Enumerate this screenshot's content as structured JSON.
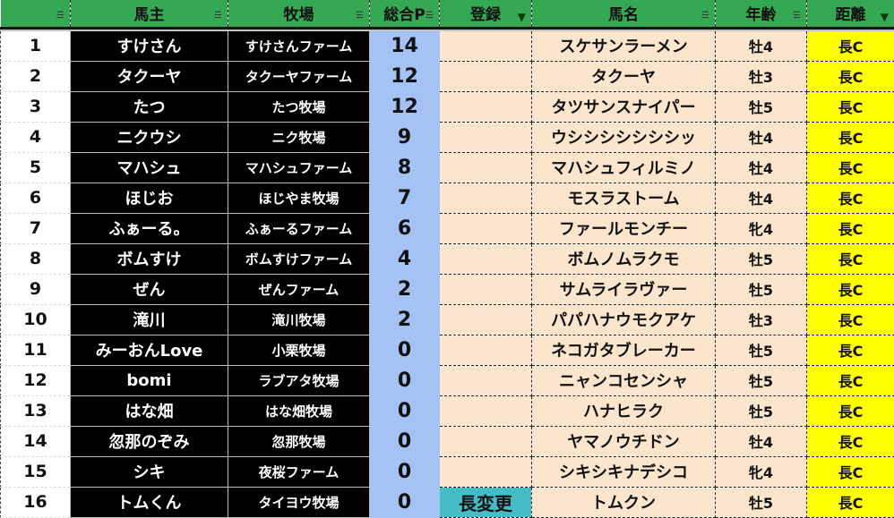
{
  "headers": [
    "",
    "馬主",
    "牧場",
    "総合P",
    "登録",
    "馬名",
    "年齢",
    "距離"
  ],
  "filter_active": [
    false,
    false,
    false,
    false,
    true,
    false,
    false,
    true
  ],
  "rows": [
    {
      "no": "1",
      "owner": "すけさん",
      "ranch": "すけさんファーム",
      "points": "14",
      "reg": "",
      "horse": "スケサンラーメン",
      "age": "牡4",
      "dist": "長C"
    },
    {
      "no": "2",
      "owner": "タクーヤ",
      "ranch": "タクーヤファーム",
      "points": "12",
      "reg": "",
      "horse": "タクーヤ",
      "age": "牡3",
      "dist": "長C"
    },
    {
      "no": "3",
      "owner": "たつ",
      "ranch": "たつ牧場",
      "points": "12",
      "reg": "",
      "horse": "タツサンスナイパー",
      "age": "牡5",
      "dist": "長C"
    },
    {
      "no": "4",
      "owner": "ニクウシ",
      "ranch": "ニク牧場",
      "points": "9",
      "reg": "",
      "horse": "ウシシシシシシシッ",
      "age": "牡4",
      "dist": "長C"
    },
    {
      "no": "5",
      "owner": "マハシュ",
      "ranch": "マハシュファーム",
      "points": "8",
      "reg": "",
      "horse": "マハシュフィルミノ",
      "age": "牡4",
      "dist": "長C"
    },
    {
      "no": "6",
      "owner": "ほじお",
      "ranch": "ほじやま牧場",
      "points": "7",
      "reg": "",
      "horse": "モスラストーム",
      "age": "牡4",
      "dist": "長C"
    },
    {
      "no": "7",
      "owner": "ふぁーる。",
      "ranch": "ふぁーるファーム",
      "points": "6",
      "reg": "",
      "horse": "ファールモンチー",
      "age": "牝4",
      "dist": "長C"
    },
    {
      "no": "8",
      "owner": "ボムすけ",
      "ranch": "ボムすけファーム",
      "points": "4",
      "reg": "",
      "horse": "ボムノムラクモ",
      "age": "牡5",
      "dist": "長C"
    },
    {
      "no": "9",
      "owner": "ぜん",
      "ranch": "ぜんファーム",
      "points": "2",
      "reg": "",
      "horse": "サムライラヴァー",
      "age": "牡5",
      "dist": "長C"
    },
    {
      "no": "10",
      "owner": "滝川",
      "ranch": "滝川牧場",
      "points": "2",
      "reg": "",
      "horse": "パパハナウモクアケ",
      "age": "牡3",
      "dist": "長C"
    },
    {
      "no": "11",
      "owner": "みーおんLove",
      "ranch": "小栗牧場",
      "points": "0",
      "reg": "",
      "horse": "ネコガタブレーカー",
      "age": "牡5",
      "dist": "長C"
    },
    {
      "no": "12",
      "owner": "bomi",
      "ranch": "ラブアタ牧場",
      "points": "0",
      "reg": "",
      "horse": "ニャンコセンシャ",
      "age": "牡5",
      "dist": "長C"
    },
    {
      "no": "13",
      "owner": "はな畑",
      "ranch": "はな畑牧場",
      "points": "0",
      "reg": "",
      "horse": "ハナヒラク",
      "age": "牡5",
      "dist": "長C"
    },
    {
      "no": "14",
      "owner": "忽那のぞみ",
      "ranch": "忽那牧場",
      "points": "0",
      "reg": "",
      "horse": "ヤマノウチドン",
      "age": "牡4",
      "dist": "長C"
    },
    {
      "no": "15",
      "owner": "シキ",
      "ranch": "夜桜ファーム",
      "points": "0",
      "reg": "",
      "horse": "シキシキナデシコ",
      "age": "牝4",
      "dist": "長C"
    },
    {
      "no": "16",
      "owner": "トムくん",
      "ranch": "タイヨウ牧場",
      "points": "0",
      "reg": "長変更",
      "horse": "トムクン",
      "age": "牡5",
      "dist": "長C"
    }
  ]
}
